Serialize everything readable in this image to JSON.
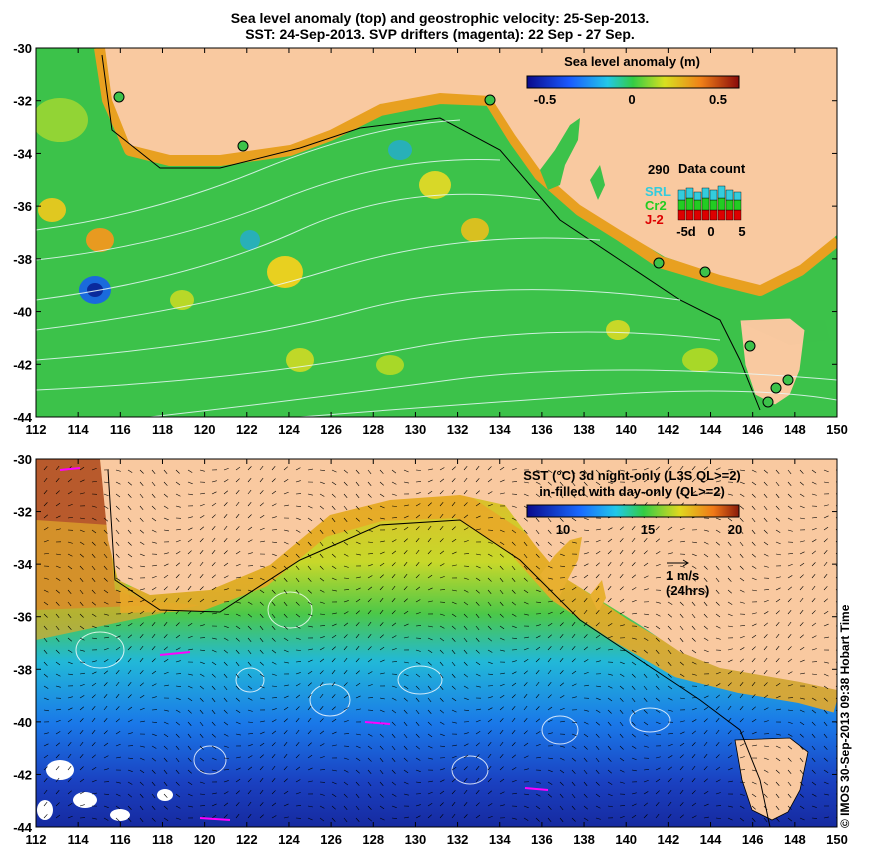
{
  "titles": {
    "line1": "Sea level anomaly (top) and geostrophic velocity: 25-Sep-2013.",
    "line2": "SST: 24-Sep-2013. SVP drifters (magenta): 22 Sep - 27 Sep."
  },
  "top_map": {
    "colorbar_title": "Sea level anomaly (m)",
    "colorbar_ticks": [
      "-0.5",
      "0",
      "0.5"
    ],
    "data_count": {
      "title": "Data count",
      "max_label": "290",
      "series": [
        {
          "name": "SRL",
          "color": "#33ccdd"
        },
        {
          "name": "Cr2",
          "color": "#22cc22"
        },
        {
          "name": "J-2",
          "color": "#dd0000"
        }
      ],
      "x_ticks": [
        "-5d",
        "0",
        "5"
      ]
    }
  },
  "bottom_map": {
    "colorbar_title_line1": "SST (°C)  3d night-only (L3S QL>=2)",
    "colorbar_title_line2": "in-filled with day-only (QL>=2)",
    "colorbar_ticks": [
      "10",
      "15",
      "20"
    ],
    "velocity_scale_label": "1 m/s",
    "velocity_scale_sublabel": "(24hrs)"
  },
  "axes": {
    "x_ticks": [
      "112",
      "114",
      "116",
      "118",
      "120",
      "122",
      "124",
      "126",
      "128",
      "130",
      "132",
      "134",
      "136",
      "138",
      "140",
      "142",
      "144",
      "146",
      "148",
      "150"
    ],
    "y_ticks": [
      "-30",
      "-32",
      "-34",
      "-36",
      "-38",
      "-40",
      "-42",
      "-44"
    ]
  },
  "credit": "© IMOS 30-Sep-2013 09:38 Hobart Time",
  "colors": {
    "land": "#f9c9a0",
    "sla_sea": "#3cc24a",
    "sst_warm": "#e8b832",
    "sst_cold": "#1e4fc8",
    "drifter": "#ff00ff"
  }
}
